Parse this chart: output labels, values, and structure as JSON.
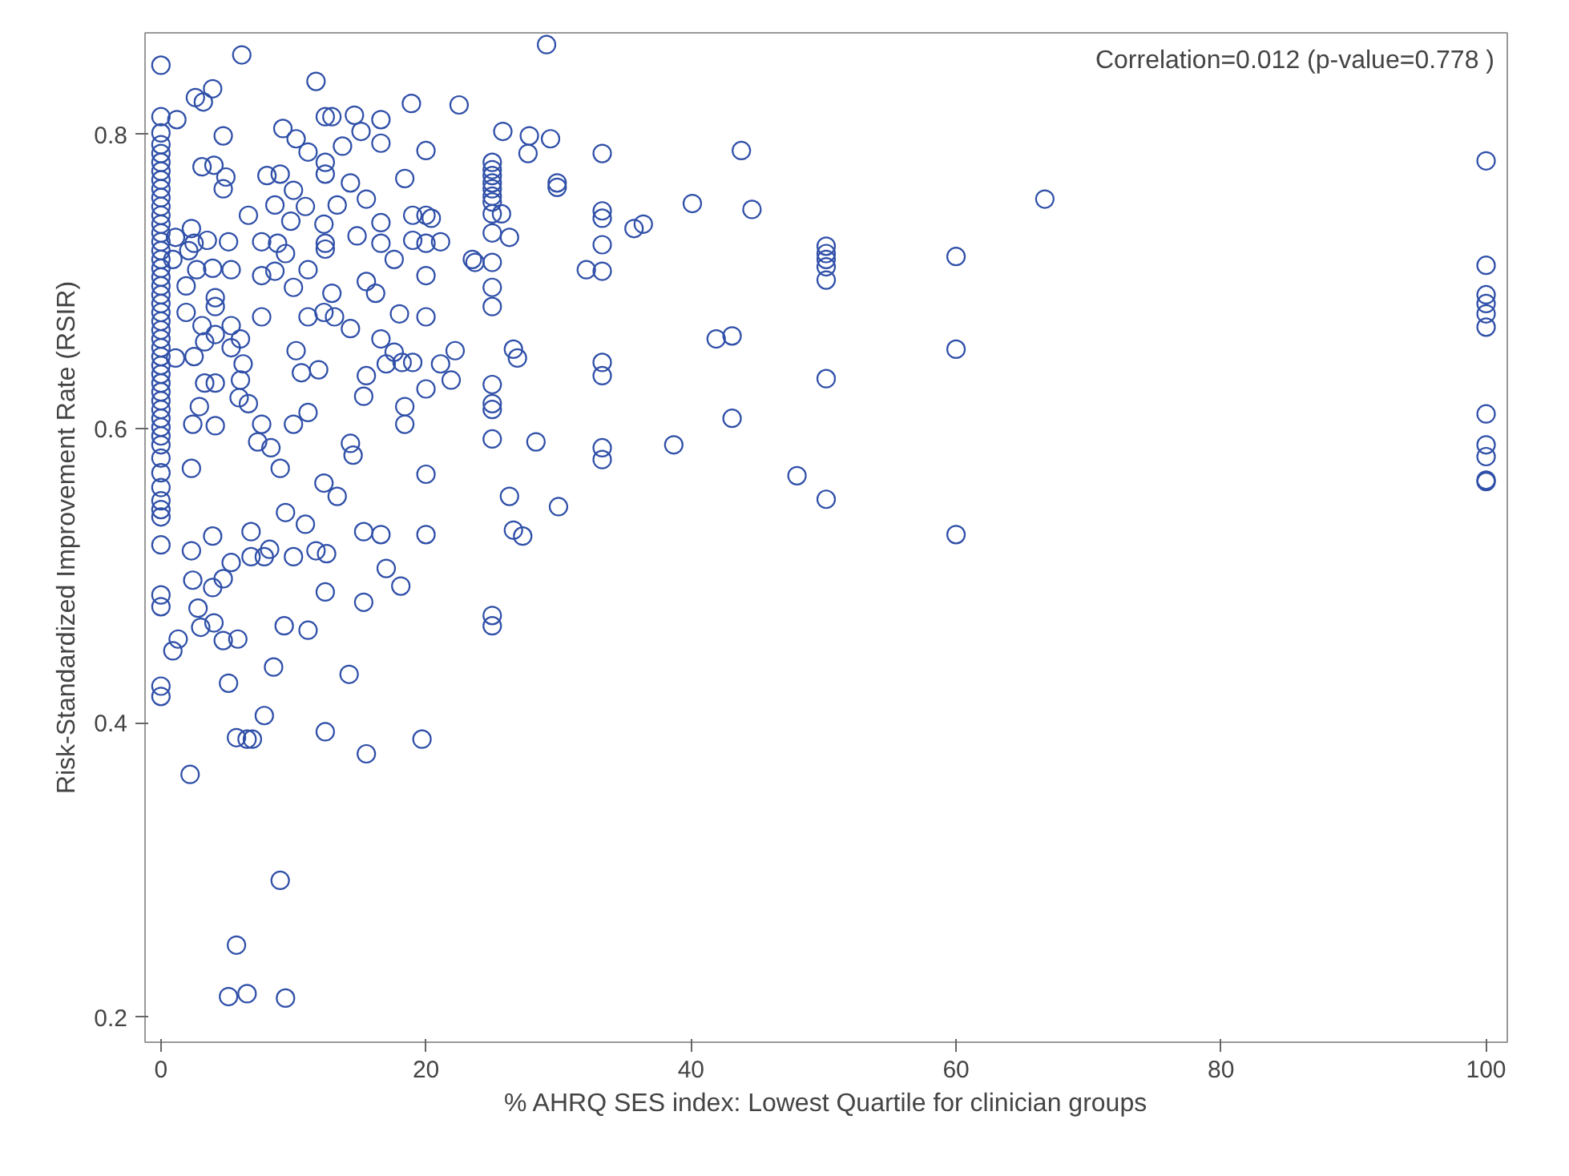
{
  "chart_data": {
    "type": "scatter",
    "xlabel": "% AHRQ SES index: Lowest Quartile for clinician groups",
    "ylabel": "Risk-Standardized Improvement Rate (RSIR)",
    "annotations": [
      "Correlation=0.012 (p-value=0.778 )"
    ],
    "xlim": [
      -1.2,
      101.6
    ],
    "ylim": [
      0.183,
      0.869
    ],
    "xticks": [
      0,
      20,
      40,
      60,
      80,
      100
    ],
    "yticks": [
      0.2,
      0.4,
      0.6,
      0.8
    ],
    "grid": false,
    "marker": "circle",
    "series": [
      {
        "color": "#2f4fa8",
        "x": [
          0,
          0,
          0,
          0,
          0,
          0,
          0,
          0,
          0,
          0,
          0,
          0,
          0,
          0,
          0,
          0,
          0,
          0,
          0,
          0,
          0,
          0,
          0,
          0,
          0,
          0,
          0,
          0,
          0,
          0,
          0,
          0,
          0,
          0,
          0,
          0,
          0,
          0,
          0,
          0,
          0,
          0,
          0,
          0,
          0,
          0,
          0,
          0,
          0,
          100,
          100,
          100,
          100,
          100,
          100,
          100,
          100,
          100,
          100,
          100,
          60,
          60,
          60,
          66.7,
          29.1,
          25.8,
          27.8,
          27.7,
          29.4,
          33.3,
          43.8,
          25,
          25,
          25,
          25,
          25,
          25,
          25,
          25,
          25.7,
          29.9,
          29.9,
          33.3,
          33.3,
          35.7,
          36.4,
          40.1,
          44.6,
          25,
          26.3,
          33.3,
          23.7,
          25,
          32.1,
          33.3,
          50.2,
          50.2,
          50.2,
          50.2,
          50.2,
          25,
          25,
          26.6,
          26.9,
          41.9,
          43.1,
          33.3,
          33.3,
          50.2,
          25,
          25,
          25,
          43.1,
          25,
          28.3,
          33.3,
          33.3,
          38.7,
          48,
          50.2,
          26.3,
          30,
          26.6,
          27.3,
          25,
          25,
          1.2,
          2.6,
          3.9,
          3.2,
          6.1,
          4.7,
          11.7,
          9.2,
          10.2,
          12.4,
          12.9,
          14.6,
          16.6,
          18.9,
          22.5,
          15.1,
          16.6,
          13.7,
          11.1,
          20,
          3.1,
          4.0,
          4.9,
          4.7,
          8.0,
          9.0,
          12.4,
          12.4,
          18.4,
          14.3,
          6.6,
          8.6,
          10.0,
          10.9,
          13.3,
          15.5,
          16.6,
          19.0,
          20,
          20.4,
          12.3,
          9.8,
          2.3,
          2.5,
          1.1,
          2.1,
          3.5,
          5.1,
          7.6,
          8.8,
          9.4,
          12.4,
          12.4,
          14.8,
          16.6,
          19,
          20,
          21.1,
          23.5,
          17.6,
          20,
          0.9,
          2.7,
          3.9,
          5.3,
          7.6,
          8.6,
          10.0,
          11.1,
          1.9,
          15.5,
          16.2,
          12.9,
          4.1,
          4.1,
          1.9,
          7.6,
          11.1,
          12.3,
          13.1,
          14.3,
          18,
          20,
          3.1,
          4.1,
          5.3,
          6,
          3.3,
          5.3,
          1.1,
          2.5,
          10.2,
          16.6,
          17.6,
          17,
          18.2,
          19,
          22.2,
          21.1,
          21.9,
          6.2,
          3.3,
          4.1,
          6,
          10.6,
          11.9,
          15.5,
          20,
          5.9,
          6.6,
          15.3,
          18.4,
          18.4,
          11.1,
          2.9,
          2.4,
          4.1,
          7.6,
          10,
          7.3,
          8.3,
          9.0,
          2.3,
          14.3,
          14.5,
          20,
          12.3,
          13.3,
          2.3,
          3.9,
          6.8,
          8.2,
          5.3,
          6.8,
          7.8,
          10,
          11.7,
          12.5,
          9.4,
          10.9,
          15.3,
          16.6,
          20,
          2.4,
          3.9,
          4.7,
          17,
          18.1,
          12.4,
          15.3,
          2.8,
          3.0,
          4.0,
          4.7,
          5.8,
          1.3,
          0.9,
          9.3,
          11.1,
          8.5,
          5.1,
          14.2,
          7.8,
          5.7,
          6.5,
          6.9,
          12.4,
          15.5,
          19.7,
          2.2,
          9.0,
          5.7,
          5.1,
          6.5,
          9.4
        ],
        "values": [
          0.847,
          0.812,
          0.801,
          0.793,
          0.787,
          0.781,
          0.775,
          0.769,
          0.763,
          0.757,
          0.751,
          0.745,
          0.739,
          0.733,
          0.727,
          0.721,
          0.715,
          0.709,
          0.703,
          0.697,
          0.691,
          0.685,
          0.679,
          0.673,
          0.667,
          0.661,
          0.655,
          0.649,
          0.643,
          0.637,
          0.631,
          0.625,
          0.619,
          0.613,
          0.607,
          0.601,
          0.595,
          0.589,
          0.58,
          0.57,
          0.56,
          0.551,
          0.545,
          0.54,
          0.521,
          0.487,
          0.479,
          0.425,
          0.418,
          0.782,
          0.711,
          0.691,
          0.685,
          0.678,
          0.669,
          0.61,
          0.589,
          0.581,
          0.565,
          0.564,
          0.717,
          0.654,
          0.528,
          0.756,
          0.861,
          0.802,
          0.799,
          0.787,
          0.797,
          0.787,
          0.789,
          0.781,
          0.776,
          0.772,
          0.767,
          0.763,
          0.758,
          0.754,
          0.746,
          0.746,
          0.767,
          0.764,
          0.748,
          0.743,
          0.736,
          0.739,
          0.753,
          0.749,
          0.733,
          0.73,
          0.725,
          0.713,
          0.713,
          0.708,
          0.707,
          0.724,
          0.719,
          0.715,
          0.71,
          0.701,
          0.696,
          0.683,
          0.654,
          0.648,
          0.661,
          0.663,
          0.645,
          0.636,
          0.634,
          0.63,
          0.617,
          0.613,
          0.607,
          0.593,
          0.591,
          0.587,
          0.579,
          0.589,
          0.568,
          0.552,
          0.554,
          0.547,
          0.531,
          0.527,
          0.473,
          0.466,
          0.81,
          0.825,
          0.831,
          0.822,
          0.854,
          0.799,
          0.836,
          0.804,
          0.797,
          0.812,
          0.812,
          0.813,
          0.81,
          0.821,
          0.82,
          0.802,
          0.794,
          0.792,
          0.788,
          0.789,
          0.778,
          0.779,
          0.771,
          0.763,
          0.772,
          0.773,
          0.781,
          0.773,
          0.77,
          0.767,
          0.745,
          0.752,
          0.762,
          0.751,
          0.752,
          0.756,
          0.74,
          0.745,
          0.745,
          0.743,
          0.739,
          0.741,
          0.736,
          0.726,
          0.73,
          0.721,
          0.728,
          0.727,
          0.727,
          0.726,
          0.719,
          0.726,
          0.722,
          0.731,
          0.726,
          0.728,
          0.726,
          0.727,
          0.715,
          0.715,
          0.704,
          0.715,
          0.708,
          0.709,
          0.708,
          0.704,
          0.707,
          0.696,
          0.708,
          0.697,
          0.7,
          0.692,
          0.692,
          0.689,
          0.683,
          0.679,
          0.676,
          0.676,
          0.679,
          0.676,
          0.668,
          0.678,
          0.676,
          0.67,
          0.664,
          0.67,
          0.661,
          0.659,
          0.655,
          0.648,
          0.649,
          0.653,
          0.661,
          0.652,
          0.644,
          0.645,
          0.645,
          0.653,
          0.644,
          0.633,
          0.644,
          0.631,
          0.631,
          0.633,
          0.638,
          0.64,
          0.636,
          0.627,
          0.621,
          0.617,
          0.622,
          0.615,
          0.603,
          0.611,
          0.615,
          0.603,
          0.602,
          0.603,
          0.603,
          0.591,
          0.587,
          0.573,
          0.573,
          0.59,
          0.582,
          0.569,
          0.563,
          0.554,
          0.517,
          0.527,
          0.53,
          0.518,
          0.509,
          0.513,
          0.513,
          0.513,
          0.517,
          0.515,
          0.543,
          0.535,
          0.53,
          0.528,
          0.528,
          0.497,
          0.492,
          0.498,
          0.505,
          0.493,
          0.489,
          0.482,
          0.478,
          0.465,
          0.468,
          0.456,
          0.457,
          0.457,
          0.449,
          0.466,
          0.463,
          0.438,
          0.427,
          0.433,
          0.405,
          0.39,
          0.389,
          0.389,
          0.394,
          0.379,
          0.389,
          0.365,
          0.293,
          0.249,
          0.214,
          0.216,
          0.213
        ]
      }
    ]
  }
}
